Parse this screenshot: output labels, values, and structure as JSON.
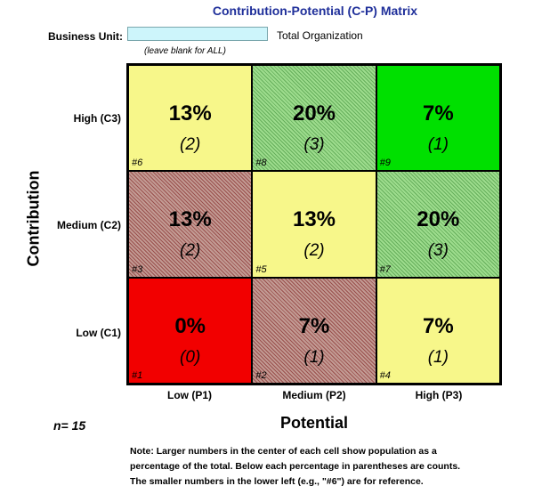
{
  "title": "Contribution-Potential (C-P) Matrix",
  "business_unit": {
    "label": "Business Unit:",
    "value": "",
    "hint": "(leave blank for ALL)",
    "selected_text": "Total Organization"
  },
  "axes": {
    "y_label": "Contribution",
    "x_label": "Potential",
    "rows": [
      "High (C3)",
      "Medium (C2)",
      "Low (C1)"
    ],
    "columns": [
      "Low (P1)",
      "Medium (P2)",
      "High (P3)"
    ]
  },
  "n_label": "n= 15",
  "colors": {
    "title": "#1f2f9a",
    "yellow": "#f7f78a",
    "green": "#00e000",
    "light_green_hatched": "#9ddc8d",
    "red": "#f20000",
    "mauve_hatched": "#c29a93",
    "input_bg": "#cdf5fb"
  },
  "cells": [
    {
      "ref": "#6",
      "pct": "13%",
      "count": "(2)",
      "color": "yellow"
    },
    {
      "ref": "#8",
      "pct": "20%",
      "count": "(3)",
      "color": "light_green_hatched"
    },
    {
      "ref": "#9",
      "pct": "7%",
      "count": "(1)",
      "color": "green"
    },
    {
      "ref": "#3",
      "pct": "13%",
      "count": "(2)",
      "color": "mauve_hatched"
    },
    {
      "ref": "#5",
      "pct": "13%",
      "count": "(2)",
      "color": "yellow"
    },
    {
      "ref": "#7",
      "pct": "20%",
      "count": "(3)",
      "color": "light_green_hatched"
    },
    {
      "ref": "#1",
      "pct": "0%",
      "count": "(0)",
      "color": "red"
    },
    {
      "ref": "#2",
      "pct": "7%",
      "count": "(1)",
      "color": "mauve_hatched"
    },
    {
      "ref": "#4",
      "pct": "7%",
      "count": "(1)",
      "color": "yellow"
    }
  ],
  "note": [
    "Note: Larger numbers in the center of each cell show population as a",
    "percentage of the total.  Below each percentage in parentheses are counts.",
    "The smaller numbers in the lower left (e.g., \"#6\") are for reference."
  ]
}
